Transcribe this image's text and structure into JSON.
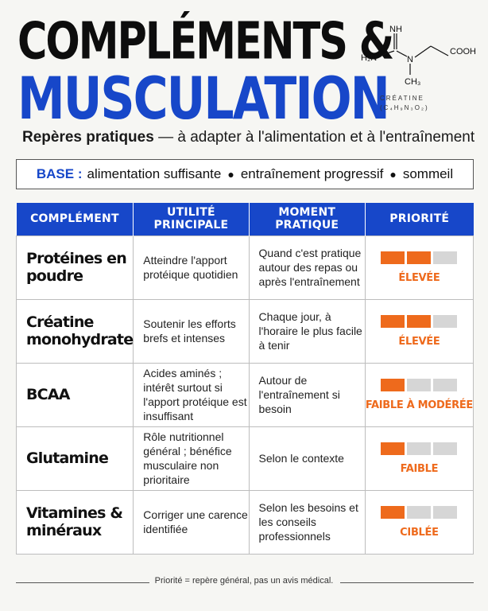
{
  "header": {
    "title_line1": "COMPLÉMENTS &",
    "title_line2": "MUSCULATION",
    "subtitle_bold": "Repères pratiques",
    "subtitle_rest": " — à adapter à l'alimentation et à l'entraînement"
  },
  "molecule": {
    "nh": "NH",
    "h2n": "H₂N",
    "n": "N",
    "cooh": "COOH",
    "ch3": "CH₃",
    "name": "CRÉATINE",
    "formula": "(C₄H₉N₃O₂)"
  },
  "base": {
    "label": "BASE :",
    "items": [
      "alimentation suffisante",
      "entraînement progressif",
      "sommeil"
    ]
  },
  "table": {
    "headers": [
      "COMPLÉMENT",
      "UTILITÉ PRINCIPALE",
      "MOMENT PRATIQUE",
      "PRIORITÉ"
    ],
    "rows": [
      {
        "name": "Protéines en poudre",
        "utility": "Atteindre l'apport protéique quotidien",
        "moment": "Quand c'est pratique autour des repas ou après l'entraînement",
        "priority_label": "ÉLEVÉE",
        "priority_level": 2
      },
      {
        "name": "Créatine monohydrate",
        "utility": "Soutenir les efforts brefs et intenses",
        "moment": "Chaque jour, à l'horaire le plus facile à tenir",
        "priority_label": "ÉLEVÉE",
        "priority_level": 2
      },
      {
        "name": "BCAA",
        "utility": "Acides aminés ; intérêt surtout si l'apport protéique est insuffisant",
        "moment": "Autour de l'entraînement si besoin",
        "priority_label": "FAIBLE À MODÉRÉE",
        "priority_level": 1
      },
      {
        "name": "Glutamine",
        "utility": "Rôle nutritionnel général ; bénéfice musculaire non prioritaire",
        "moment": "Selon le contexte",
        "priority_label": "FAIBLE",
        "priority_level": 1
      },
      {
        "name": "Vitamines & minéraux",
        "utility": "Corriger une carence identifiée",
        "moment": "Selon les besoins et les conseils professionnels",
        "priority_label": "CIBLÉE",
        "priority_level": 1
      }
    ]
  },
  "footer": "Priorité = repère général, pas un avis médical.",
  "colors": {
    "blue": "#1747c9",
    "orange": "#ee6a1c",
    "gray_bar": "#d6d6d6"
  }
}
